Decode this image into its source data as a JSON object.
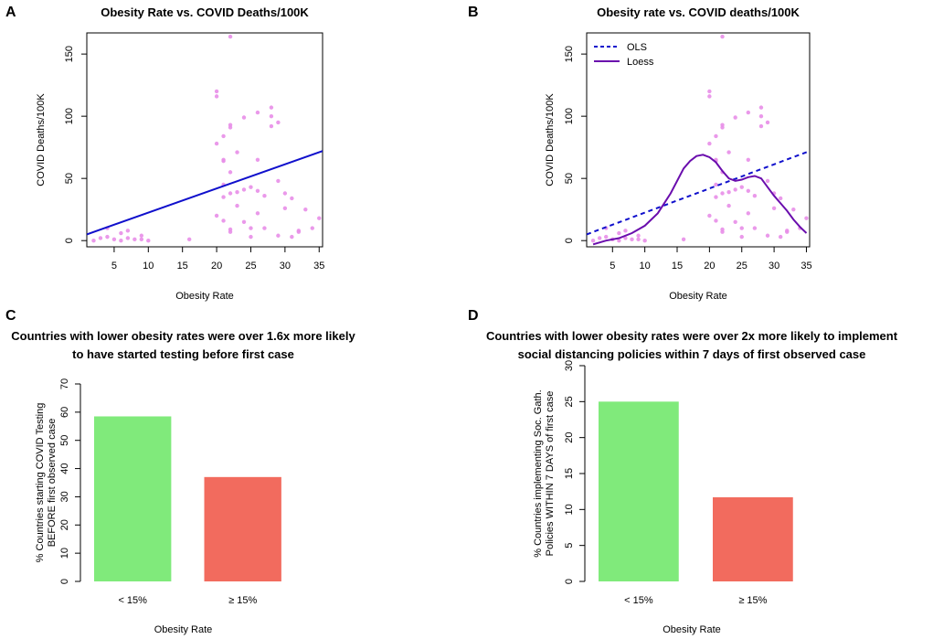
{
  "panels": [
    {
      "id": "A",
      "type": "scatter",
      "title": "Obesity Rate vs. COVID Deaths/100K",
      "xlabel": "Obesity Rate",
      "ylabel": "COVID Deaths/100K",
      "xlim": [
        1,
        35.5
      ],
      "ylim": [
        -5,
        167
      ],
      "xticks": [
        5,
        10,
        15,
        20,
        25,
        30,
        35
      ],
      "yticks": [
        0,
        50,
        100,
        150
      ],
      "points": [
        [
          2,
          0
        ],
        [
          3,
          2
        ],
        [
          4,
          10
        ],
        [
          4,
          3
        ],
        [
          5,
          1
        ],
        [
          6,
          6
        ],
        [
          6,
          0
        ],
        [
          7,
          8
        ],
        [
          7,
          2
        ],
        [
          8,
          1
        ],
        [
          9,
          4
        ],
        [
          9,
          1
        ],
        [
          10,
          0
        ],
        [
          16,
          1
        ],
        [
          20,
          116
        ],
        [
          20,
          120
        ],
        [
          20,
          78
        ],
        [
          21,
          64
        ],
        [
          21,
          65
        ],
        [
          21,
          84
        ],
        [
          20,
          20
        ],
        [
          21,
          16
        ],
        [
          21,
          35
        ],
        [
          21,
          45
        ],
        [
          22,
          9
        ],
        [
          22,
          93
        ],
        [
          22,
          91
        ],
        [
          22,
          164
        ],
        [
          22,
          38
        ],
        [
          22,
          7
        ],
        [
          23,
          71
        ],
        [
          23,
          39
        ],
        [
          23,
          28
        ],
        [
          24,
          41
        ],
        [
          24,
          99
        ],
        [
          25,
          43
        ],
        [
          25,
          10
        ],
        [
          25,
          3
        ],
        [
          26,
          65
        ],
        [
          26,
          40
        ],
        [
          26,
          103
        ],
        [
          26,
          22
        ],
        [
          27,
          36
        ],
        [
          27,
          10
        ],
        [
          28,
          100
        ],
        [
          28,
          107
        ],
        [
          28,
          92
        ],
        [
          29,
          95
        ],
        [
          29,
          48
        ],
        [
          29,
          4
        ],
        [
          30,
          38
        ],
        [
          30,
          26
        ],
        [
          31,
          3
        ],
        [
          31,
          34
        ],
        [
          32,
          7
        ],
        [
          32,
          8
        ],
        [
          33,
          25
        ],
        [
          34,
          10
        ],
        [
          35,
          18
        ],
        [
          22,
          55
        ],
        [
          24,
          15
        ]
      ],
      "lines": [
        {
          "name": "OLS",
          "x": [
            1,
            35.5
          ],
          "y": [
            5,
            72
          ],
          "color": "#1010cc",
          "dash": false
        }
      ],
      "point_color": "#e88ee8"
    },
    {
      "id": "B",
      "type": "scatter",
      "title": "Obesity rate vs. COVID deaths/100K",
      "xlabel": "Obesity Rate",
      "ylabel": "COVID Deaths/100K",
      "xlim": [
        1,
        35.5
      ],
      "ylim": [
        -5,
        167
      ],
      "xticks": [
        5,
        10,
        15,
        20,
        25,
        30,
        35
      ],
      "yticks": [
        0,
        50,
        100,
        150
      ],
      "points": [
        [
          2,
          0
        ],
        [
          3,
          2
        ],
        [
          4,
          10
        ],
        [
          4,
          3
        ],
        [
          5,
          1
        ],
        [
          6,
          6
        ],
        [
          6,
          0
        ],
        [
          7,
          8
        ],
        [
          7,
          2
        ],
        [
          8,
          1
        ],
        [
          9,
          4
        ],
        [
          9,
          1
        ],
        [
          10,
          0
        ],
        [
          16,
          1
        ],
        [
          20,
          116
        ],
        [
          20,
          120
        ],
        [
          20,
          78
        ],
        [
          21,
          64
        ],
        [
          21,
          65
        ],
        [
          21,
          84
        ],
        [
          20,
          20
        ],
        [
          21,
          16
        ],
        [
          21,
          35
        ],
        [
          21,
          45
        ],
        [
          22,
          9
        ],
        [
          22,
          93
        ],
        [
          22,
          91
        ],
        [
          22,
          164
        ],
        [
          22,
          38
        ],
        [
          22,
          7
        ],
        [
          23,
          71
        ],
        [
          23,
          39
        ],
        [
          23,
          28
        ],
        [
          24,
          41
        ],
        [
          24,
          99
        ],
        [
          25,
          43
        ],
        [
          25,
          10
        ],
        [
          25,
          3
        ],
        [
          26,
          65
        ],
        [
          26,
          40
        ],
        [
          26,
          103
        ],
        [
          26,
          22
        ],
        [
          27,
          36
        ],
        [
          27,
          10
        ],
        [
          28,
          100
        ],
        [
          28,
          107
        ],
        [
          28,
          92
        ],
        [
          29,
          95
        ],
        [
          29,
          48
        ],
        [
          29,
          4
        ],
        [
          30,
          38
        ],
        [
          30,
          26
        ],
        [
          31,
          3
        ],
        [
          31,
          34
        ],
        [
          32,
          7
        ],
        [
          32,
          8
        ],
        [
          33,
          25
        ],
        [
          34,
          10
        ],
        [
          35,
          18
        ],
        [
          22,
          55
        ],
        [
          24,
          15
        ]
      ],
      "lines": [
        {
          "name": "OLS",
          "x": [
            1,
            35.5
          ],
          "y": [
            5,
            72
          ],
          "color": "#1010cc",
          "dash": true
        },
        {
          "name": "Loess",
          "x": [
            2,
            4,
            6,
            8,
            10,
            12,
            14,
            16,
            17,
            18,
            19,
            20,
            21,
            22,
            23,
            24,
            25,
            26,
            27,
            28,
            29,
            30,
            31,
            32,
            33,
            34,
            35
          ],
          "y": [
            -3,
            0,
            2,
            6,
            12,
            22,
            38,
            58,
            64,
            68,
            69,
            67,
            63,
            56,
            50,
            48,
            49,
            51,
            52,
            50,
            43,
            36,
            30,
            24,
            17,
            11,
            6
          ],
          "color": "#6a0dad",
          "dash": false
        }
      ],
      "legend": [
        {
          "label": "OLS",
          "color": "#1010cc",
          "dash": true
        },
        {
          "label": "Loess",
          "color": "#6a0dad",
          "dash": false
        }
      ],
      "point_color": "#e88ee8"
    },
    {
      "id": "C",
      "type": "bar",
      "title": [
        "Countries with lower obesity rates were over 1.6x more likely",
        "to have started testing before first case"
      ],
      "xlabel": "Obesity Rate",
      "ylabel": [
        "% Countries starting COVID Testing",
        "BEFORE first observed case"
      ],
      "categories": [
        "< 15%",
        "≥ 15%"
      ],
      "values": [
        58.5,
        37
      ],
      "colors": [
        "#80ea7b",
        "#f26b5e"
      ],
      "ylim": [
        0,
        70
      ],
      "yticks": [
        0,
        10,
        20,
        30,
        40,
        50,
        60,
        70
      ]
    },
    {
      "id": "D",
      "type": "bar",
      "title": [
        "Countries with lower obesity rates were over 2x more likely to implement",
        "social distancing policies within 7 days of first observed case"
      ],
      "xlabel": "Obesity Rate",
      "ylabel": [
        "% Countries implementing  Soc. Gath.",
        "Policies WITHIN 7 DAYS of first  case"
      ],
      "categories": [
        "< 15%",
        "≥ 15%"
      ],
      "values": [
        25,
        11.7
      ],
      "colors": [
        "#80ea7b",
        "#f26b5e"
      ],
      "ylim": [
        0,
        30
      ],
      "yticks": [
        0,
        5,
        10,
        15,
        20,
        25,
        30
      ]
    }
  ]
}
